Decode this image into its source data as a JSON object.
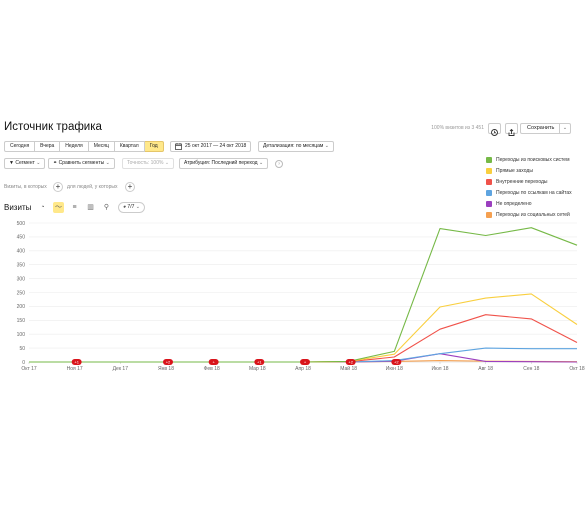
{
  "header": {
    "title": "Источник трафика",
    "sample_info": "100% визитов из 3 451",
    "save_label": "Сохранить"
  },
  "toolbar": {
    "periods": [
      {
        "label": "Сегодня",
        "active": false
      },
      {
        "label": "Вчера",
        "active": false
      },
      {
        "label": "Неделя",
        "active": false
      },
      {
        "label": "Месяц",
        "active": false
      },
      {
        "label": "Квартал",
        "active": false
      },
      {
        "label": "Год",
        "active": true
      }
    ],
    "date_range": "25 окт 2017 — 24 окт 2018",
    "detail": "Детализация: по месяцам"
  },
  "filters": {
    "segment": "Сегмент",
    "compare": "Сравнить сегменты",
    "accuracy": "Точность: 100%",
    "attribution": "Атрибуция: Последний переход"
  },
  "conditions": {
    "visits_where": "Визиты, в которых",
    "for_users": "для людей, у которых"
  },
  "chart_header": {
    "label": "Визиты",
    "series_count": "7/7"
  },
  "icons": {
    "calendar": "calendar-icon",
    "clock": "clock-icon",
    "export": "export-icon",
    "filter": "filter-icon",
    "compare": "compare-segments-icon",
    "info": "info-icon",
    "pie": "pie-chart-icon",
    "line": "line-chart-icon",
    "area": "stacked-area-icon",
    "bar": "bar-chart-icon",
    "map": "map-pin-icon",
    "series": "series-selector-icon"
  },
  "legend": [
    {
      "name": "Переходы из поисковых систем",
      "color": "#76b947"
    },
    {
      "name": "Прямые заходы",
      "color": "#f9cf3f"
    },
    {
      "name": "Внутренние переходы",
      "color": "#f0524a"
    },
    {
      "name": "Переходы по ссылкам на сайтах",
      "color": "#5ea4e0"
    },
    {
      "name": "Не определено",
      "color": "#9b3fbf"
    },
    {
      "name": "Переходы из социальных сетей",
      "color": "#f5a050"
    }
  ],
  "chart_data": {
    "type": "line",
    "categories": [
      "Окт 17",
      "Ноя 17",
      "Дек 17",
      "Янв 18",
      "Фев 18",
      "Мар 18",
      "Апр 18",
      "Май 18",
      "Июн 18",
      "Июл 18",
      "Авг 18",
      "Сен 18",
      "Окт 18"
    ],
    "ylim": [
      0,
      500
    ],
    "yticks": [
      0,
      50,
      100,
      150,
      200,
      250,
      300,
      350,
      400,
      450,
      500
    ],
    "grid": true,
    "legend_position": "top-right",
    "series": [
      {
        "name": "Переходы из поисковых систем",
        "color": "#76b947",
        "values": [
          0,
          0,
          0,
          0,
          0,
          0,
          0,
          2,
          38,
          480,
          455,
          483,
          420
        ]
      },
      {
        "name": "Прямые заходы",
        "color": "#f9cf3f",
        "values": [
          0,
          0,
          0,
          0,
          0,
          0,
          0,
          2,
          28,
          198,
          230,
          245,
          135
        ]
      },
      {
        "name": "Внутренние переходы",
        "color": "#f0524a",
        "values": [
          0,
          0,
          0,
          0,
          0,
          0,
          0,
          1,
          18,
          118,
          170,
          155,
          70
        ]
      },
      {
        "name": "Переходы по ссылкам на сайтах",
        "color": "#5ea4e0",
        "values": [
          0,
          0,
          0,
          0,
          0,
          0,
          0,
          0,
          5,
          30,
          50,
          48,
          48
        ]
      },
      {
        "name": "Не определено",
        "color": "#9b3fbf",
        "values": [
          0,
          0,
          0,
          0,
          0,
          0,
          0,
          0,
          3,
          30,
          2,
          1,
          0
        ]
      },
      {
        "name": "Переходы из социальных сетей",
        "color": "#f5a050",
        "values": [
          0,
          0,
          0,
          0,
          0,
          0,
          0,
          0,
          2,
          5,
          3,
          2,
          1
        ]
      }
    ],
    "annotations": [
      {
        "x": "Ноя 17",
        "label": "+1"
      },
      {
        "x": "Янв 18",
        "label": "+2"
      },
      {
        "x": "Фев 18",
        "label": "+"
      },
      {
        "x": "Мар 18",
        "label": "+1"
      },
      {
        "x": "Апр 18",
        "label": "+"
      },
      {
        "x": "Май 18",
        "label": "+2"
      },
      {
        "x": "Июн 18",
        "label": "+2"
      }
    ]
  }
}
